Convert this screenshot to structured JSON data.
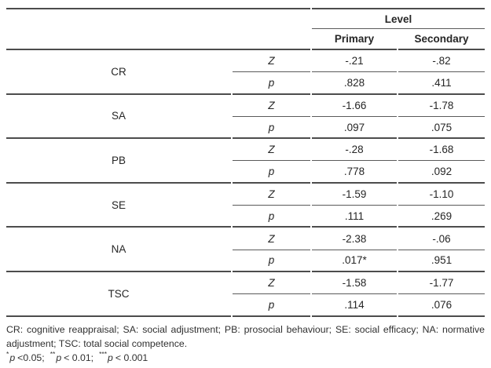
{
  "table": {
    "header": {
      "level_label": "Level",
      "columns": [
        "Primary",
        "Secondary"
      ]
    },
    "stat_labels": {
      "z": "Z",
      "p": "p"
    },
    "rows": [
      {
        "measure": "CR",
        "z": [
          "-.21",
          "-.82"
        ],
        "p": [
          ".828",
          ".411"
        ]
      },
      {
        "measure": "SA",
        "z": [
          "-1.66",
          "-1.78"
        ],
        "p": [
          ".097",
          ".075"
        ]
      },
      {
        "measure": "PB",
        "z": [
          "-.28",
          "-1.68"
        ],
        "p": [
          ".778",
          ".092"
        ]
      },
      {
        "measure": "SE",
        "z": [
          "-1.59",
          "-1.10"
        ],
        "p": [
          ".111",
          ".269"
        ]
      },
      {
        "measure": "NA",
        "z": [
          "-2.38",
          "-.06"
        ],
        "p": [
          ".017*",
          ".951"
        ]
      },
      {
        "measure": "TSC",
        "z": [
          "-1.58",
          "-1.77"
        ],
        "p": [
          ".114",
          ".076"
        ]
      }
    ]
  },
  "footnotes": {
    "abbreviations_line1": "CR: cognitive reappraisal; SA: social adjustment; PB: prosocial behaviour; SE: social efficacy; NA: normative",
    "abbreviations_line2": "adjustment; TSC: total social competence.",
    "significance": [
      {
        "stars": "*",
        "p": "p",
        "rest": "<0.05;"
      },
      {
        "stars": "**",
        "p": "p",
        "rest": "< 0.01;"
      },
      {
        "stars": "***",
        "p": "p",
        "rest": "< 0.001"
      }
    ]
  },
  "colors": {
    "line": "#4c4c4c",
    "line_thin": "#5a5a5a",
    "text": "#262626"
  }
}
